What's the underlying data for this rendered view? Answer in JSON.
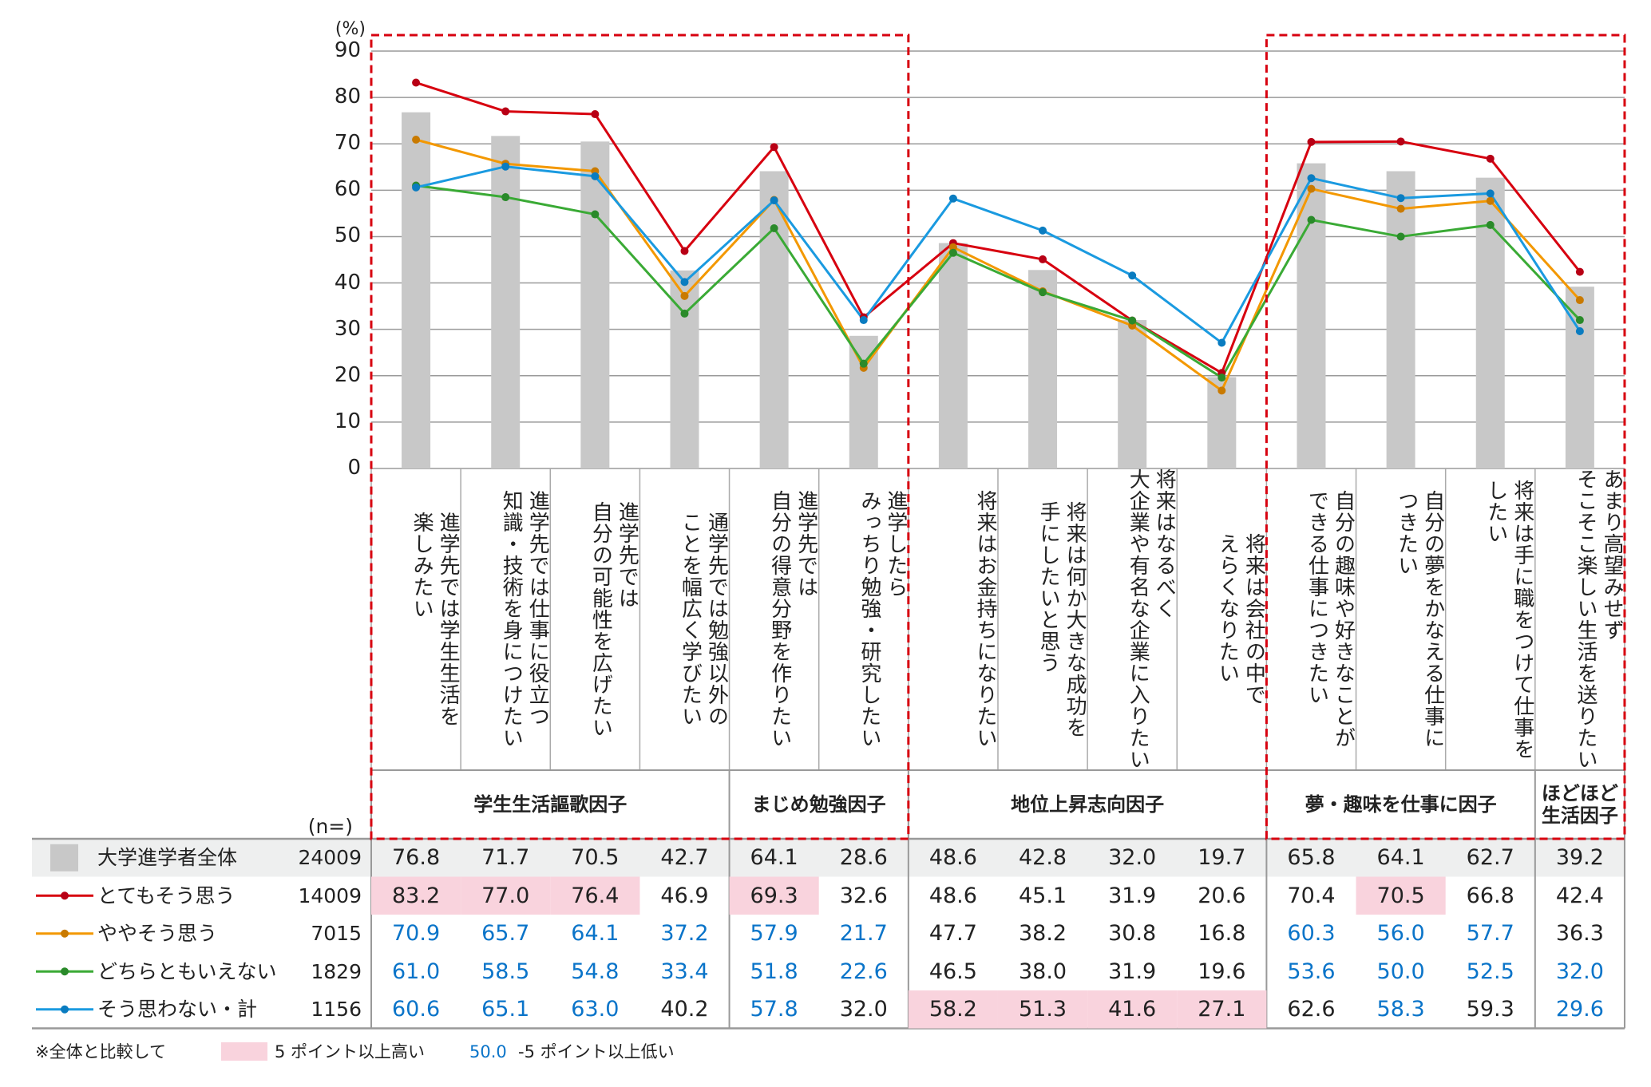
{
  "chart_data": {
    "type": "bar+line",
    "y_unit_label": "(%)",
    "ylim": [
      0,
      90
    ],
    "yticks": [
      "0",
      "10",
      "20",
      "30",
      "40",
      "50",
      "60",
      "70",
      "80",
      "90"
    ],
    "grid": true,
    "categories": [
      "進学先では学生生活を\n楽しみたい",
      "進学先では仕事に役立つ\n知識・技術を身につけたい",
      "進学先では\n自分の可能性を広げたい",
      "通学先では勉強以外の\nことを幅広く学びたい",
      "進学先では\n自分の得意分野を作りたい",
      "進学したら\nみっちり勉強・研究したい",
      "将来はお金持ちになりたい",
      "将来は何か大きな成功を\n手にしたいと思う",
      "将来はなるべく\n大企業や有名な企業に入りたい",
      "将来は会社の中で\nえらくなりたい",
      "自分の趣味や好きなことが\nできる仕事につきたい",
      "自分の夢をかなえる仕事に\nつきたい",
      "将来は手に職をつけて仕事を\nしたい",
      "あまり高望みせず\nそこそこ楽しい生活を送りたい"
    ],
    "groups": [
      {
        "label": "学生生活謳歌因子",
        "start": 0,
        "count": 4,
        "highlighted": true
      },
      {
        "label": "まじめ勉強因子",
        "start": 4,
        "count": 2,
        "highlighted": true
      },
      {
        "label": "地位上昇志向因子",
        "start": 6,
        "count": 4,
        "highlighted": false
      },
      {
        "label": "夢・趣味を仕事に因子",
        "start": 10,
        "count": 3,
        "highlighted": true
      },
      {
        "label": "ほどほど\n生活因子",
        "start": 13,
        "count": 1,
        "highlighted": true
      }
    ],
    "n_header": "(n=)",
    "series": [
      {
        "name": "大学進学者全体",
        "n": "24009",
        "kind": "bar",
        "color": "#c8c8c8",
        "values": [
          76.8,
          71.7,
          70.5,
          42.7,
          64.1,
          28.6,
          48.6,
          42.8,
          32.0,
          19.7,
          65.8,
          64.1,
          62.7,
          39.2
        ]
      },
      {
        "name": "とてもそう思う",
        "n": "14009",
        "kind": "line",
        "color": "#d7000f",
        "marker": "#b80015",
        "values": [
          83.2,
          77.0,
          76.4,
          46.9,
          69.3,
          32.6,
          48.6,
          45.1,
          31.9,
          20.6,
          70.4,
          70.5,
          66.8,
          42.4
        ]
      },
      {
        "name": "ややそう思う",
        "n": "7015",
        "kind": "line",
        "color": "#f39800",
        "marker": "#c97a00",
        "values": [
          70.9,
          65.7,
          64.1,
          37.2,
          57.9,
          21.7,
          47.7,
          38.2,
          30.8,
          16.8,
          60.3,
          56.0,
          57.7,
          36.3
        ]
      },
      {
        "name": "どちらともいえない",
        "n": "1829",
        "kind": "line",
        "color": "#3aaa35",
        "marker": "#2a8a2a",
        "values": [
          61.0,
          58.5,
          54.8,
          33.4,
          51.8,
          22.6,
          46.5,
          38.0,
          31.9,
          19.6,
          53.6,
          50.0,
          52.5,
          32.0
        ]
      },
      {
        "name": "そう思わない・計",
        "n": "1156",
        "kind": "line",
        "color": "#1a9ae0",
        "marker": "#0a7cc0",
        "values": [
          60.6,
          65.1,
          63.0,
          40.2,
          57.8,
          32.0,
          58.2,
          51.3,
          41.6,
          27.1,
          62.6,
          58.3,
          59.3,
          29.6
        ]
      }
    ],
    "colors": {
      "highlight_bg": "#f9d3dd",
      "low_text": "#0a74c9",
      "dashed_box": "#d7000f",
      "base_row_bg": "#eeefef"
    }
  },
  "footnote": {
    "prefix": "※全体と比較して",
    "high_label": "5 ポイント以上高い",
    "low_sample": "50.0",
    "low_label": "-5 ポイント以上低い"
  }
}
